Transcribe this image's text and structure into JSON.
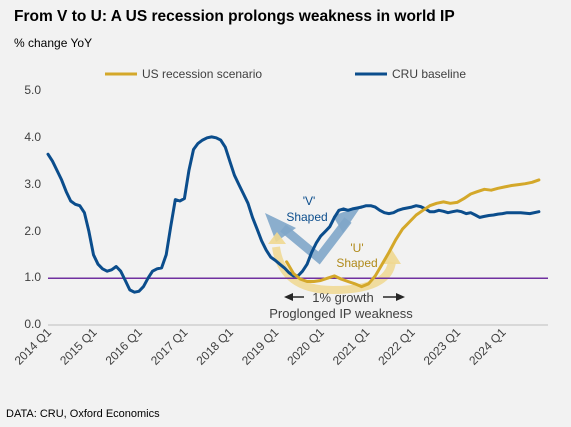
{
  "title": "From V to U: A US recession prolongs weakness in world IP",
  "subtitle": "% change YoY",
  "source": "DATA: CRU, Oxford Economics",
  "chart_data": {
    "type": "line",
    "title": "From V to U: A US recession prolongs weakness in world IP",
    "ylabel": "% change YoY",
    "ylim": [
      0,
      5
    ],
    "yticks": [
      "0.0",
      "1.0",
      "2.0",
      "3.0",
      "4.0",
      "5.0"
    ],
    "ytick_values": [
      0,
      1,
      2,
      3,
      4,
      5
    ],
    "xlim": [
      2014.0,
      2025.0
    ],
    "xticks": [
      "2014 Q1",
      "2015 Q1",
      "2016 Q1",
      "2017 Q1",
      "2018 Q1",
      "2019 Q1",
      "2020 Q1",
      "2021 Q1",
      "2022 Q1",
      "2023 Q1",
      "2024 Q1"
    ],
    "xtick_values": [
      2014,
      2015,
      2016,
      2017,
      2018,
      2019,
      2020,
      2021,
      2022,
      2023,
      2024
    ],
    "legend_position": "top",
    "grid": false,
    "reference_line": {
      "y": 1.0,
      "color": "#7030a0"
    },
    "series": [
      {
        "name": "US recession scenario",
        "color": "#d4a82a",
        "points": [
          [
            2019.25,
            1.35
          ],
          [
            2019.4,
            1.1
          ],
          [
            2019.55,
            0.98
          ],
          [
            2019.7,
            0.93
          ],
          [
            2019.85,
            0.93
          ],
          [
            2020.0,
            0.95
          ],
          [
            2020.15,
            1.0
          ],
          [
            2020.3,
            1.05
          ],
          [
            2020.45,
            0.98
          ],
          [
            2020.6,
            0.93
          ],
          [
            2020.75,
            0.88
          ],
          [
            2020.9,
            0.82
          ],
          [
            2021.05,
            0.88
          ],
          [
            2021.2,
            1.05
          ],
          [
            2021.35,
            1.3
          ],
          [
            2021.5,
            1.55
          ],
          [
            2021.65,
            1.82
          ],
          [
            2021.8,
            2.05
          ],
          [
            2021.95,
            2.2
          ],
          [
            2022.1,
            2.35
          ],
          [
            2022.25,
            2.45
          ],
          [
            2022.4,
            2.55
          ],
          [
            2022.55,
            2.6
          ],
          [
            2022.7,
            2.63
          ],
          [
            2022.85,
            2.6
          ],
          [
            2023.0,
            2.62
          ],
          [
            2023.15,
            2.7
          ],
          [
            2023.3,
            2.8
          ],
          [
            2023.45,
            2.85
          ],
          [
            2023.6,
            2.9
          ],
          [
            2023.75,
            2.88
          ],
          [
            2023.9,
            2.92
          ],
          [
            2024.05,
            2.95
          ],
          [
            2024.2,
            2.98
          ],
          [
            2024.35,
            3.0
          ],
          [
            2024.5,
            3.02
          ],
          [
            2024.65,
            3.05
          ],
          [
            2024.8,
            3.1
          ]
        ]
      },
      {
        "name": "CRU baseline",
        "color": "#0b4d8c",
        "points": [
          [
            2014.0,
            3.65
          ],
          [
            2014.1,
            3.5
          ],
          [
            2014.2,
            3.3
          ],
          [
            2014.3,
            3.1
          ],
          [
            2014.4,
            2.85
          ],
          [
            2014.5,
            2.65
          ],
          [
            2014.6,
            2.58
          ],
          [
            2014.7,
            2.55
          ],
          [
            2014.8,
            2.4
          ],
          [
            2014.9,
            2.0
          ],
          [
            2015.0,
            1.5
          ],
          [
            2015.1,
            1.3
          ],
          [
            2015.2,
            1.2
          ],
          [
            2015.3,
            1.15
          ],
          [
            2015.4,
            1.18
          ],
          [
            2015.5,
            1.25
          ],
          [
            2015.6,
            1.15
          ],
          [
            2015.7,
            0.95
          ],
          [
            2015.8,
            0.75
          ],
          [
            2015.9,
            0.7
          ],
          [
            2016.0,
            0.72
          ],
          [
            2016.1,
            0.82
          ],
          [
            2016.2,
            1.0
          ],
          [
            2016.3,
            1.15
          ],
          [
            2016.4,
            1.2
          ],
          [
            2016.5,
            1.22
          ],
          [
            2016.6,
            1.5
          ],
          [
            2016.7,
            2.1
          ],
          [
            2016.8,
            2.68
          ],
          [
            2016.9,
            2.65
          ],
          [
            2017.0,
            2.7
          ],
          [
            2017.1,
            3.3
          ],
          [
            2017.2,
            3.75
          ],
          [
            2017.3,
            3.88
          ],
          [
            2017.4,
            3.95
          ],
          [
            2017.5,
            4.0
          ],
          [
            2017.6,
            4.02
          ],
          [
            2017.7,
            4.0
          ],
          [
            2017.8,
            3.95
          ],
          [
            2017.9,
            3.8
          ],
          [
            2018.0,
            3.5
          ],
          [
            2018.1,
            3.2
          ],
          [
            2018.2,
            3.0
          ],
          [
            2018.3,
            2.8
          ],
          [
            2018.4,
            2.6
          ],
          [
            2018.5,
            2.3
          ],
          [
            2018.6,
            2.05
          ],
          [
            2018.7,
            1.8
          ],
          [
            2018.8,
            1.6
          ],
          [
            2018.9,
            1.45
          ],
          [
            2019.0,
            1.38
          ],
          [
            2019.1,
            1.3
          ],
          [
            2019.2,
            1.22
          ],
          [
            2019.3,
            1.12
          ],
          [
            2019.4,
            1.05
          ],
          [
            2019.5,
            1.05
          ],
          [
            2019.6,
            1.15
          ],
          [
            2019.7,
            1.3
          ],
          [
            2019.8,
            1.55
          ],
          [
            2019.9,
            1.75
          ],
          [
            2020.0,
            1.9
          ],
          [
            2020.1,
            2.0
          ],
          [
            2020.2,
            2.1
          ],
          [
            2020.3,
            2.3
          ],
          [
            2020.4,
            2.45
          ],
          [
            2020.5,
            2.48
          ],
          [
            2020.6,
            2.45
          ],
          [
            2020.7,
            2.48
          ],
          [
            2020.8,
            2.5
          ],
          [
            2020.9,
            2.52
          ],
          [
            2021.0,
            2.55
          ],
          [
            2021.1,
            2.55
          ],
          [
            2021.2,
            2.52
          ],
          [
            2021.3,
            2.45
          ],
          [
            2021.4,
            2.4
          ],
          [
            2021.5,
            2.38
          ],
          [
            2021.6,
            2.4
          ],
          [
            2021.7,
            2.45
          ],
          [
            2021.8,
            2.48
          ],
          [
            2021.9,
            2.5
          ],
          [
            2022.0,
            2.52
          ],
          [
            2022.1,
            2.55
          ],
          [
            2022.2,
            2.53
          ],
          [
            2022.3,
            2.48
          ],
          [
            2022.4,
            2.42
          ],
          [
            2022.5,
            2.42
          ],
          [
            2022.6,
            2.45
          ],
          [
            2022.7,
            2.43
          ],
          [
            2022.8,
            2.4
          ],
          [
            2022.9,
            2.42
          ],
          [
            2023.0,
            2.44
          ],
          [
            2023.1,
            2.42
          ],
          [
            2023.2,
            2.38
          ],
          [
            2023.3,
            2.4
          ],
          [
            2023.4,
            2.35
          ],
          [
            2023.5,
            2.3
          ],
          [
            2023.6,
            2.32
          ],
          [
            2023.7,
            2.34
          ],
          [
            2023.8,
            2.35
          ],
          [
            2023.9,
            2.37
          ],
          [
            2024.0,
            2.38
          ],
          [
            2024.1,
            2.4
          ],
          [
            2024.2,
            2.4
          ],
          [
            2024.4,
            2.4
          ],
          [
            2024.6,
            2.38
          ],
          [
            2024.8,
            2.42
          ]
        ]
      }
    ],
    "annotations": [
      {
        "text": "'V'",
        "color": "#0b4d8c"
      },
      {
        "text": "Shaped",
        "color": "#0b4d8c"
      },
      {
        "text": "'U'",
        "color": "#b08a1a"
      },
      {
        "text": "Shaped",
        "color": "#b08a1a"
      },
      {
        "text": "1% growth",
        "color": "#404040"
      },
      {
        "text": "Proglonged IP weakness",
        "color": "#404040"
      }
    ]
  }
}
